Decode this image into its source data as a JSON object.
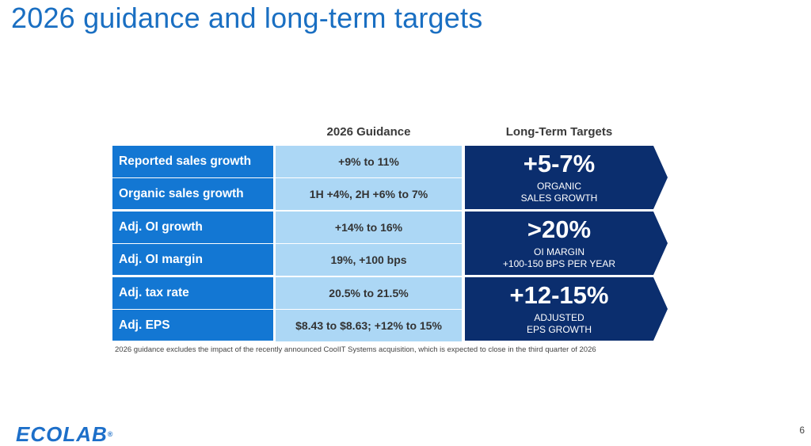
{
  "slide": {
    "title": "2026 guidance and long-term targets",
    "page_number": "6"
  },
  "headers": {
    "guidance": "2026 Guidance",
    "long_term": "Long-Term Targets"
  },
  "metrics": [
    {
      "label": "Reported sales growth",
      "value": "+9% to 11%"
    },
    {
      "label": "Organic sales growth",
      "value": "1H +4%, 2H +6% to 7%"
    },
    {
      "label": "Adj. OI growth",
      "value": "+14% to 16%"
    },
    {
      "label": "Adj. OI margin",
      "value": "19%, +100 bps"
    },
    {
      "label": "Adj. tax rate",
      "value": "20.5% to 21.5%"
    },
    {
      "label": "Adj. EPS",
      "value": "$8.43 to $8.63; +12% to 15%"
    }
  ],
  "targets": [
    {
      "big": "+5-7%",
      "line1": "ORGANIC",
      "line2": "SALES GROWTH"
    },
    {
      "big": ">20%",
      "line1": "OI MARGIN",
      "line2": "+100-150 BPS PER YEAR"
    },
    {
      "big": "+12-15%",
      "line1": "ADJUSTED",
      "line2": "EPS GROWTH"
    }
  ],
  "footnote": "2026 guidance excludes the impact of the recently announced CoolIT Systems acquisition, which is expected to close in the third quarter of 2026",
  "logo": {
    "text": "ECOLAB",
    "mark": "®"
  },
  "colors": {
    "title": "#1a6fc2",
    "label_bg": "#1377d3",
    "value_bg": "#acd7f5",
    "target_bg": "#0b2e6e"
  }
}
